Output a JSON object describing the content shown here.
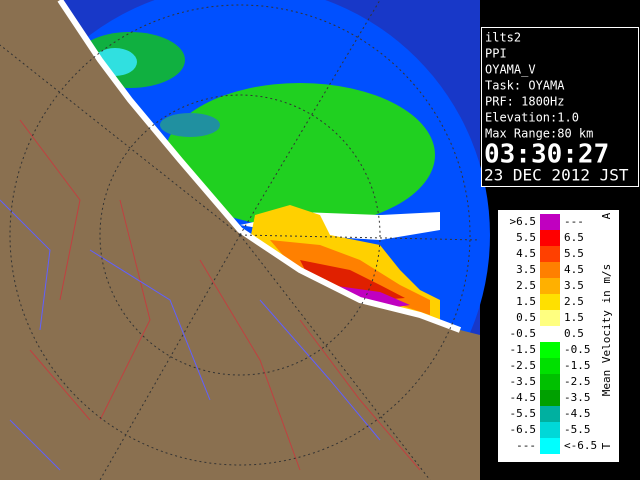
{
  "info": {
    "lines": [
      "ilts2",
      "PPI",
      "OYAMA_V",
      "Task: OYAMA",
      "PRF: 1800Hz",
      "Elevation:1.0",
      "Max Range:80 km"
    ],
    "time": "03:30:27",
    "date": "23 DEC 2012 JST"
  },
  "legend": {
    "title": "Mean Velocity in m/s",
    "top": "A",
    "bottom": "T",
    "rows": [
      {
        "left": ">6.5",
        "right": "---",
        "color": "#c000c0"
      },
      {
        "left": "5.5",
        "right": "6.5",
        "color": "#ff0000"
      },
      {
        "left": "4.5",
        "right": "5.5",
        "color": "#ff4000"
      },
      {
        "left": "3.5",
        "right": "4.5",
        "color": "#ff8000"
      },
      {
        "left": "2.5",
        "right": "3.5",
        "color": "#ffb000"
      },
      {
        "left": "1.5",
        "right": "2.5",
        "color": "#ffe000"
      },
      {
        "left": "0.5",
        "right": "1.5",
        "color": "#ffff80"
      },
      {
        "left": "-0.5",
        "right": "0.5",
        "color": "#ffffff"
      },
      {
        "left": "-1.5",
        "right": "-0.5",
        "color": "#00ff00"
      },
      {
        "left": "-2.5",
        "right": "-1.5",
        "color": "#00e000"
      },
      {
        "left": "-3.5",
        "right": "-2.5",
        "color": "#00c000"
      },
      {
        "left": "-4.5",
        "right": "-3.5",
        "color": "#00a000"
      },
      {
        "left": "-5.5",
        "right": "-4.5",
        "color": "#00b0a0"
      },
      {
        "left": "-6.5",
        "right": "-5.5",
        "color": "#00d8d8"
      },
      {
        "left": "---",
        "right": "<-6.5",
        "color": "#00ffff"
      }
    ]
  }
}
